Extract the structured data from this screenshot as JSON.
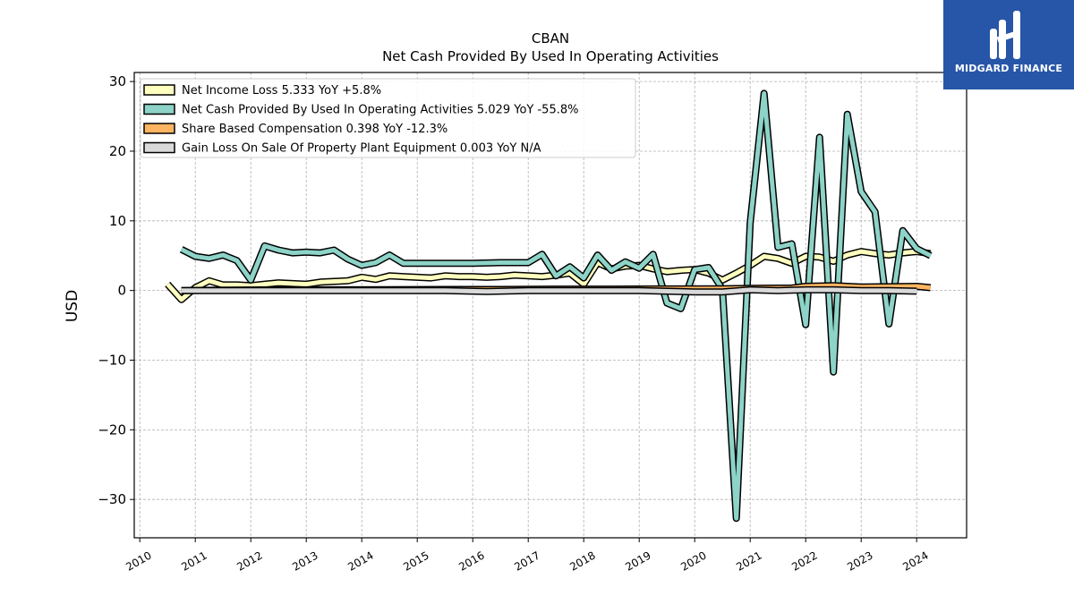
{
  "branding": {
    "name": "MIDGARD FINANCE",
    "background": "#2756a8"
  },
  "chart_data": {
    "type": "line",
    "title": "CBAN",
    "subtitle": "Net Cash Provided By Used In Operating Activities",
    "xlabel": "",
    "ylabel": "USD",
    "xlim": [
      2009.9,
      2024.9
    ],
    "ylim": [
      -35.5,
      31.3
    ],
    "x_ticks": [
      "2010",
      "2011",
      "2012",
      "2013",
      "2014",
      "2015",
      "2016",
      "2017",
      "2018",
      "2019",
      "2020",
      "2021",
      "2022",
      "2023",
      "2024"
    ],
    "y_ticks": [
      -30,
      -20,
      -10,
      0,
      10,
      20,
      30
    ],
    "grid": true,
    "legend_position": "top-left",
    "series": [
      {
        "name": "Net Income Loss",
        "legend": "Net Income Loss  5.333 YoY +5.8%",
        "color": "#ffffbf",
        "style": "line",
        "points": [
          [
            2010.5,
            0.9
          ],
          [
            2010.75,
            -1.3
          ],
          [
            2011.0,
            0.4
          ],
          [
            2011.25,
            1.4
          ],
          [
            2011.5,
            0.8
          ],
          [
            2011.75,
            0.8
          ],
          [
            2012.0,
            0.7
          ],
          [
            2012.25,
            0.9
          ],
          [
            2012.5,
            1.1
          ],
          [
            2012.75,
            1.0
          ],
          [
            2013.0,
            0.9
          ],
          [
            2013.25,
            1.2
          ],
          [
            2013.5,
            1.3
          ],
          [
            2013.75,
            1.4
          ],
          [
            2014.0,
            1.9
          ],
          [
            2014.25,
            1.6
          ],
          [
            2014.5,
            2.1
          ],
          [
            2014.75,
            2.0
          ],
          [
            2015.0,
            1.9
          ],
          [
            2015.25,
            1.8
          ],
          [
            2015.5,
            2.1
          ],
          [
            2015.75,
            2.0
          ],
          [
            2016.0,
            2.0
          ],
          [
            2016.25,
            1.9
          ],
          [
            2016.5,
            2.0
          ],
          [
            2016.75,
            2.2
          ],
          [
            2017.0,
            2.1
          ],
          [
            2017.25,
            2.0
          ],
          [
            2017.5,
            2.2
          ],
          [
            2017.75,
            2.5
          ],
          [
            2018.0,
            0.9
          ],
          [
            2018.25,
            4.0
          ],
          [
            2018.5,
            3.1
          ],
          [
            2018.75,
            3.5
          ],
          [
            2019.0,
            3.6
          ],
          [
            2019.25,
            3.1
          ],
          [
            2019.5,
            2.7
          ],
          [
            2019.75,
            2.9
          ],
          [
            2020.0,
            3.0
          ],
          [
            2020.25,
            2.5
          ],
          [
            2020.5,
            1.5
          ],
          [
            2020.75,
            2.5
          ],
          [
            2021.0,
            3.6
          ],
          [
            2021.25,
            4.9
          ],
          [
            2021.5,
            4.6
          ],
          [
            2021.75,
            3.9
          ],
          [
            2022.0,
            4.9
          ],
          [
            2022.25,
            4.8
          ],
          [
            2022.5,
            4.2
          ],
          [
            2022.75,
            5.1
          ],
          [
            2023.0,
            5.6
          ],
          [
            2023.25,
            5.3
          ],
          [
            2023.5,
            5.1
          ],
          [
            2023.75,
            5.4
          ],
          [
            2024.0,
            5.6
          ],
          [
            2024.25,
            5.3
          ]
        ]
      },
      {
        "name": "Net Cash Provided By Used In Operating Activities",
        "legend": "Net Cash Provided By Used In Operating Activities  5.029 YoY -55.8%",
        "color": "#8dd3c7",
        "style": "line",
        "points": [
          [
            2010.75,
            5.9
          ],
          [
            2011.0,
            4.9
          ],
          [
            2011.25,
            4.6
          ],
          [
            2011.5,
            5.1
          ],
          [
            2011.75,
            4.3
          ],
          [
            2012.0,
            1.5
          ],
          [
            2012.25,
            6.4
          ],
          [
            2012.5,
            5.8
          ],
          [
            2012.75,
            5.4
          ],
          [
            2013.0,
            5.5
          ],
          [
            2013.25,
            5.4
          ],
          [
            2013.5,
            5.8
          ],
          [
            2013.75,
            4.5
          ],
          [
            2014.0,
            3.6
          ],
          [
            2014.25,
            4.0
          ],
          [
            2014.5,
            5.1
          ],
          [
            2014.75,
            3.9
          ],
          [
            2015.0,
            3.9
          ],
          [
            2015.5,
            3.9
          ],
          [
            2016.0,
            3.9
          ],
          [
            2016.5,
            4.0
          ],
          [
            2017.0,
            4.0
          ],
          [
            2017.25,
            5.2
          ],
          [
            2017.5,
            2.1
          ],
          [
            2017.75,
            3.4
          ],
          [
            2018.0,
            1.8
          ],
          [
            2018.25,
            5.1
          ],
          [
            2018.5,
            2.9
          ],
          [
            2018.75,
            4.1
          ],
          [
            2019.0,
            3.2
          ],
          [
            2019.25,
            5.2
          ],
          [
            2019.5,
            -1.8
          ],
          [
            2019.75,
            -2.6
          ],
          [
            2020.0,
            3.0
          ],
          [
            2020.25,
            3.3
          ],
          [
            2020.5,
            0.2
          ],
          [
            2020.75,
            -32.7
          ],
          [
            2021.0,
            9.7
          ],
          [
            2021.25,
            28.3
          ],
          [
            2021.5,
            6.2
          ],
          [
            2021.75,
            6.7
          ],
          [
            2022.0,
            -4.9
          ],
          [
            2022.25,
            22.0
          ],
          [
            2022.5,
            -11.7
          ],
          [
            2022.75,
            25.3
          ],
          [
            2023.0,
            14.2
          ],
          [
            2023.25,
            11.3
          ],
          [
            2023.5,
            -4.8
          ],
          [
            2023.75,
            8.6
          ],
          [
            2024.0,
            6.0
          ],
          [
            2024.25,
            5.0
          ]
        ]
      },
      {
        "name": "Share Based Compensation",
        "legend": "Share Based Compensation  0.398 YoY -12.3%",
        "color": "#fdb462",
        "style": "line",
        "points": [
          [
            2010.75,
            0.0
          ],
          [
            2011.5,
            0.05
          ],
          [
            2012.5,
            0.1
          ],
          [
            2013.5,
            0.1
          ],
          [
            2014.5,
            0.12
          ],
          [
            2015.5,
            0.15
          ],
          [
            2016.5,
            0.15
          ],
          [
            2017.5,
            0.2
          ],
          [
            2018.5,
            0.2
          ],
          [
            2019.5,
            0.22
          ],
          [
            2020.5,
            0.25
          ],
          [
            2021.0,
            0.3
          ],
          [
            2021.75,
            0.35
          ],
          [
            2022.0,
            0.6
          ],
          [
            2022.5,
            0.7
          ],
          [
            2023.0,
            0.5
          ],
          [
            2023.5,
            0.55
          ],
          [
            2024.0,
            0.6
          ],
          [
            2024.25,
            0.4
          ]
        ]
      },
      {
        "name": "Gain Loss On Sale Of Property Plant Equipment",
        "legend": "Gain Loss On Sale Of Property Plant Equipment  0.003 YoY N/A",
        "color": "#d9d9d9",
        "style": "line",
        "points": [
          [
            2010.75,
            0.0
          ],
          [
            2011.5,
            0.0
          ],
          [
            2012.5,
            0.0
          ],
          [
            2013.5,
            0.0
          ],
          [
            2014.5,
            0.0
          ],
          [
            2015.5,
            0.0
          ],
          [
            2016.25,
            -0.15
          ],
          [
            2017.0,
            0.0
          ],
          [
            2018.0,
            0.0
          ],
          [
            2019.0,
            0.0
          ],
          [
            2020.0,
            -0.2
          ],
          [
            2020.5,
            -0.2
          ],
          [
            2021.0,
            0.1
          ],
          [
            2021.5,
            0.0
          ],
          [
            2022.0,
            0.1
          ],
          [
            2022.5,
            0.1
          ],
          [
            2023.0,
            0.0
          ],
          [
            2023.5,
            0.0
          ],
          [
            2024.0,
            -0.1
          ]
        ]
      }
    ]
  }
}
